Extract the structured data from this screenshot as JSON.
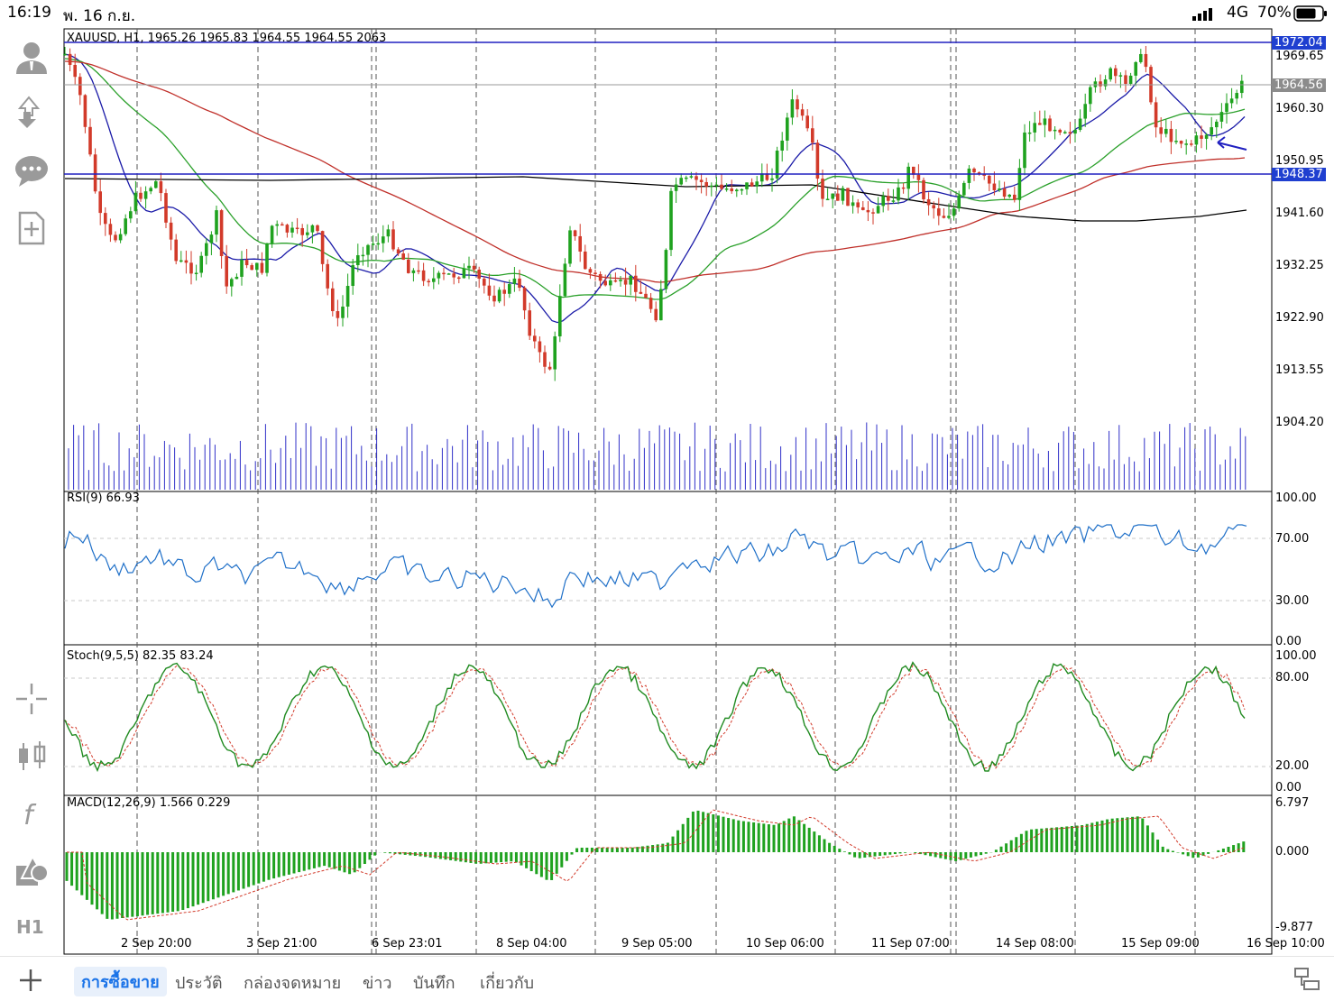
{
  "status": {
    "time": "16:19",
    "date": "พ. 16 ก.ย.",
    "network": "4G",
    "battery": "70%"
  },
  "chart": {
    "symbol_line": "XAUUSD, H1, 1965.26 1965.83 1964.55 1964.55 2063",
    "price_axis": [
      "1969.65",
      "1960.30",
      "1950.95",
      "1941.60",
      "1932.25",
      "1922.90",
      "1913.55",
      "1904.20"
    ],
    "price_tags": {
      "upper_line": "1972.04",
      "current": "1964.56",
      "lower_line": "1948.37"
    },
    "rsi": {
      "label": "RSI(9) 66.93",
      "axis": [
        "100.00",
        "70.00",
        "30.00",
        "0.00"
      ]
    },
    "stoch": {
      "label": "Stoch(9,5,5) 82.35 83.24",
      "axis": [
        "100.00",
        "80.00",
        "20.00",
        "0.00"
      ]
    },
    "macd": {
      "label": "MACD(12,26,9) 1.566 0.229",
      "axis": [
        "6.797",
        "0.000",
        "-9.877"
      ]
    },
    "time_axis": [
      "2 Sep 20:00",
      "3 Sep 21:00",
      "6 Sep 23:01",
      "8 Sep 04:00",
      "9 Sep 05:00",
      "10 Sep 06:00",
      "11 Sep 07:00",
      "14 Sep 08:00",
      "15 Sep 09:00",
      "16 Sep 10:00"
    ]
  },
  "tabs": [
    "การซื้อขาย",
    "ประวัติ",
    "กล่องจดหมาย",
    "ข่าว",
    "บันทึก",
    "เกี่ยวกับ"
  ],
  "sidebar_icons": [
    "account-icon",
    "trade-icon",
    "chat-icon",
    "new-document-icon",
    "crosshair-icon",
    "chart-type-icon",
    "indicators-icon",
    "objects-icon"
  ],
  "timeframe": "H1",
  "colors": {
    "up": "#1fa21f",
    "down": "#d23a2a",
    "ma_fast": "#1a1aa8",
    "ma_mid": "#2aa02a",
    "ma_slow": "#c0302a",
    "ma_long": "#000000",
    "level_line": "#2020c0",
    "rsi": "#1e6fc8",
    "volume": "#3030c8"
  }
}
